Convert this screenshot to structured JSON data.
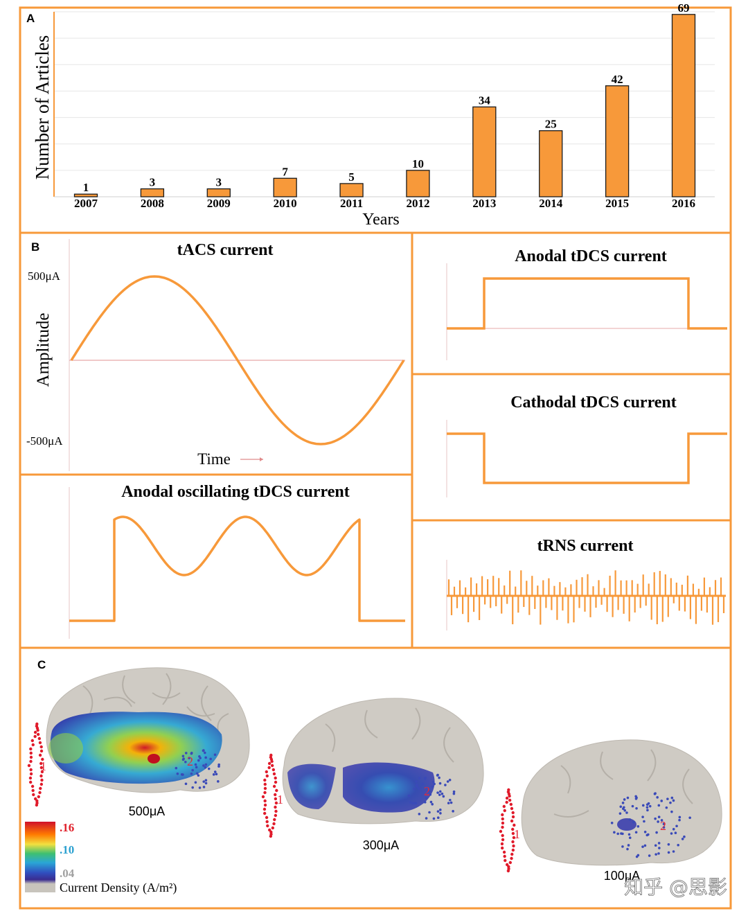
{
  "figure": {
    "accent": "#F7993A",
    "panels": {
      "a": "A",
      "b": "B",
      "c": "C"
    }
  },
  "chart_data": [
    {
      "type": "bar",
      "categories": [
        "2007",
        "2008",
        "2009",
        "2010",
        "2011",
        "2012",
        "2013",
        "2014",
        "2015",
        "2016"
      ],
      "values": [
        1,
        3,
        3,
        7,
        5,
        10,
        34,
        25,
        42,
        69
      ],
      "xlabel": "Years",
      "ylabel": "Number of Articles",
      "ylim": [
        0,
        70
      ],
      "grid": true,
      "bar_color": "#F7993A"
    },
    {
      "type": "line",
      "title": "tACS current",
      "ylabel": "Amplitude",
      "xlabel": "Time",
      "y_ticks": [
        "500μA",
        "-500μA"
      ],
      "shape": "sine"
    },
    {
      "type": "line",
      "title": "Anodal tDCS current",
      "shape": "positive-square-pulse"
    },
    {
      "type": "line",
      "title": "Cathodal tDCS current",
      "shape": "negative-square-pulse"
    },
    {
      "type": "line",
      "title": "Anodal oscillating tDCS current",
      "shape": "oscillating-pulse"
    },
    {
      "type": "line",
      "title": "tRNS current",
      "shape": "random-noise"
    }
  ],
  "brains": {
    "labels": [
      "500μA",
      "300μA",
      "100μA"
    ],
    "electrode_labels": [
      "1",
      "2"
    ]
  },
  "colorbar": {
    "ticks": [
      ".16",
      ".10",
      ".04"
    ],
    "tick_colors": [
      "#e0202a",
      "#2aa0d0",
      "#a0a0a0"
    ],
    "label": "Current Density (A/m²)"
  },
  "watermark": "知乎 @思影"
}
